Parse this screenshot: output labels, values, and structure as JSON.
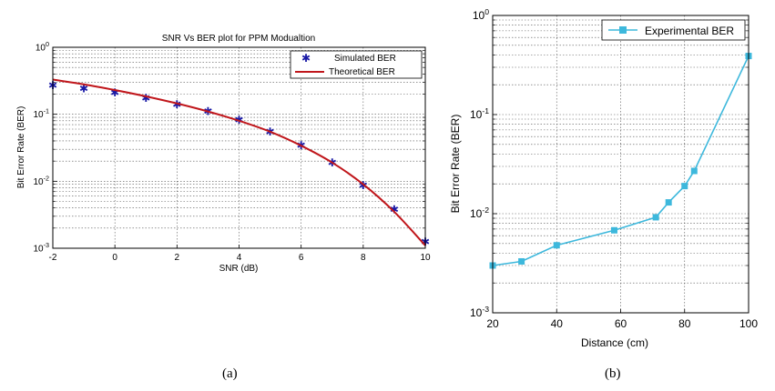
{
  "chart_data": [
    {
      "type": "line",
      "title": "SNR Vs BER plot for PPM Modualtion",
      "xlabel": "SNR (dB)",
      "ylabel": "Bit Error Rate (BER)",
      "xlim": [
        -2,
        10
      ],
      "ylim": [
        0.001,
        1
      ],
      "yscale": "log",
      "grid": true,
      "legend_position": "top-right",
      "x_ticks": [
        "-2",
        "0",
        "2",
        "4",
        "6",
        "8",
        "10"
      ],
      "y_ticks": [
        {
          "base": "10",
          "exp": "-3"
        },
        {
          "base": "10",
          "exp": "-2"
        },
        {
          "base": "10",
          "exp": "-1"
        },
        {
          "base": "10",
          "exp": "0"
        }
      ],
      "series": [
        {
          "name": "Simulated BER",
          "style": "markers",
          "color": "#1a1aa6",
          "x": [
            -2,
            -1,
            0,
            1,
            2,
            3,
            4,
            5,
            6,
            7,
            8,
            9,
            10
          ],
          "values": [
            0.27,
            0.24,
            0.21,
            0.175,
            0.14,
            0.11,
            0.082,
            0.055,
            0.034,
            0.019,
            0.0086,
            0.0038,
            0.00125
          ]
        },
        {
          "name": "Theoretical BER",
          "style": "line",
          "color": "#c0161b",
          "x": [
            -2,
            -1,
            0,
            1,
            2,
            3,
            4,
            5,
            6,
            7,
            8,
            9,
            10
          ],
          "values": [
            0.33,
            0.28,
            0.23,
            0.185,
            0.145,
            0.11,
            0.08,
            0.055,
            0.034,
            0.019,
            0.009,
            0.0035,
            0.0011
          ]
        }
      ],
      "caption": "(a)"
    },
    {
      "type": "line",
      "title": "",
      "xlabel": "Distance (cm)",
      "ylabel": "Bit Error Rate (BER)",
      "xlim": [
        20,
        100
      ],
      "ylim": [
        0.001,
        1
      ],
      "yscale": "log",
      "grid": true,
      "legend_position": "top-right",
      "x_ticks": [
        "20",
        "40",
        "60",
        "80",
        "100"
      ],
      "y_ticks": [
        {
          "base": "10",
          "exp": "-3"
        },
        {
          "base": "10",
          "exp": "-2"
        },
        {
          "base": "10",
          "exp": "-1"
        },
        {
          "base": "10",
          "exp": "0"
        }
      ],
      "series": [
        {
          "name": "Experimental BER",
          "style": "line-markers",
          "color": "#3db8dc",
          "x": [
            20,
            29,
            40,
            58,
            71,
            75,
            80,
            83,
            100
          ],
          "values": [
            0.003,
            0.0033,
            0.0048,
            0.0068,
            0.0092,
            0.013,
            0.019,
            0.027,
            0.39
          ]
        }
      ],
      "caption": "(b)"
    }
  ]
}
